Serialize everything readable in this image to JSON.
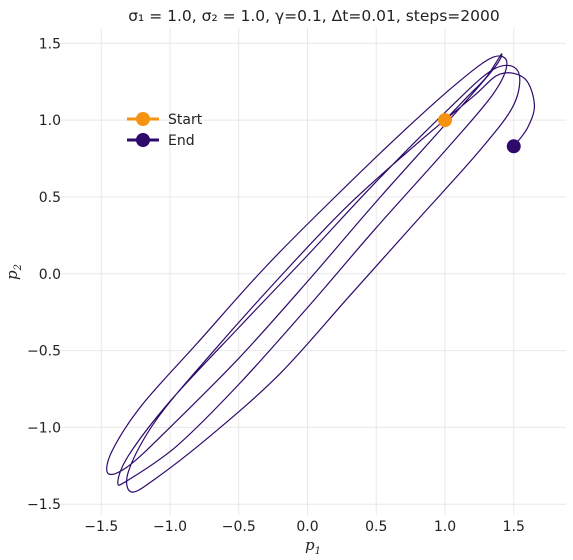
{
  "chart_data": {
    "type": "line",
    "title": "σ₁ = 1.0, σ₂ = 1.0, γ=0.1, Δt=0.01, steps=2000",
    "xlabel": "p",
    "xlabel_sub": "1",
    "ylabel": "p",
    "ylabel_sub": "2",
    "xlim": [
      -1.8,
      1.88
    ],
    "ylim": [
      -1.57,
      1.6
    ],
    "x_ticks": [
      -1.5,
      -1.0,
      -0.5,
      0.0,
      0.5,
      1.0,
      1.5
    ],
    "x_tick_labels": [
      "−1.5",
      "−1.0",
      "−0.5",
      "0.0",
      "0.5",
      "1.0",
      "1.5"
    ],
    "y_ticks": [
      -1.5,
      -1.0,
      -0.5,
      0.0,
      0.5,
      1.0,
      1.5
    ],
    "y_tick_labels": [
      "−1.5",
      "−1.0",
      "−0.5",
      "0.0",
      "0.5",
      "1.0",
      "1.5"
    ],
    "grid": true,
    "legend_position": "upper-left",
    "trajectory_color": "#2e0a6b",
    "markers": [
      {
        "name": "Start",
        "x": 1.0,
        "y": 1.0,
        "color": "#f5920f"
      },
      {
        "name": "End",
        "x": 1.5,
        "y": 0.83,
        "color": "#2e0a6b"
      }
    ],
    "series": [
      {
        "values": [
          [
            1.0,
            1.0
          ],
          [
            1.16,
            1.15
          ],
          [
            1.3,
            1.28
          ],
          [
            1.41,
            1.43
          ],
          [
            1.35,
            1.33
          ],
          [
            1.0,
            0.97
          ],
          [
            0.5,
            0.47
          ],
          [
            0.0,
            -0.05
          ],
          [
            -0.5,
            -0.55
          ],
          [
            -1.0,
            -1.0
          ],
          [
            -1.3,
            -1.25
          ],
          [
            -1.45,
            -1.3
          ],
          [
            -1.42,
            -1.15
          ],
          [
            -1.2,
            -0.85
          ],
          [
            -0.8,
            -0.45
          ],
          [
            -0.3,
            0.05
          ],
          [
            0.2,
            0.5
          ],
          [
            0.7,
            0.93
          ],
          [
            1.1,
            1.25
          ],
          [
            1.35,
            1.41
          ],
          [
            1.45,
            1.37
          ],
          [
            1.35,
            1.17
          ],
          [
            1.0,
            0.8
          ],
          [
            0.5,
            0.3
          ],
          [
            0.0,
            -0.22
          ],
          [
            -0.5,
            -0.72
          ],
          [
            -0.95,
            -1.12
          ],
          [
            -1.3,
            -1.34
          ],
          [
            -1.38,
            -1.36
          ],
          [
            -1.3,
            -1.18
          ],
          [
            -1.0,
            -0.83
          ],
          [
            -0.5,
            -0.35
          ],
          [
            0.0,
            0.12
          ],
          [
            0.5,
            0.6
          ],
          [
            1.0,
            1.05
          ],
          [
            1.35,
            1.33
          ],
          [
            1.53,
            1.32
          ],
          [
            1.5,
            1.1
          ],
          [
            1.25,
            0.8
          ],
          [
            0.8,
            0.35
          ],
          [
            0.3,
            -0.15
          ],
          [
            -0.2,
            -0.65
          ],
          [
            -0.7,
            -1.05
          ],
          [
            -1.1,
            -1.33
          ],
          [
            -1.28,
            -1.42
          ],
          [
            -1.3,
            -1.28
          ],
          [
            -1.1,
            -0.95
          ],
          [
            -0.7,
            -0.52
          ],
          [
            -0.2,
            -0.02
          ],
          [
            0.3,
            0.45
          ],
          [
            0.8,
            0.85
          ],
          [
            1.2,
            1.15
          ],
          [
            1.4,
            1.3
          ],
          [
            1.58,
            1.27
          ],
          [
            1.65,
            1.1
          ],
          [
            1.6,
            0.95
          ],
          [
            1.5,
            0.83
          ]
        ]
      }
    ]
  }
}
